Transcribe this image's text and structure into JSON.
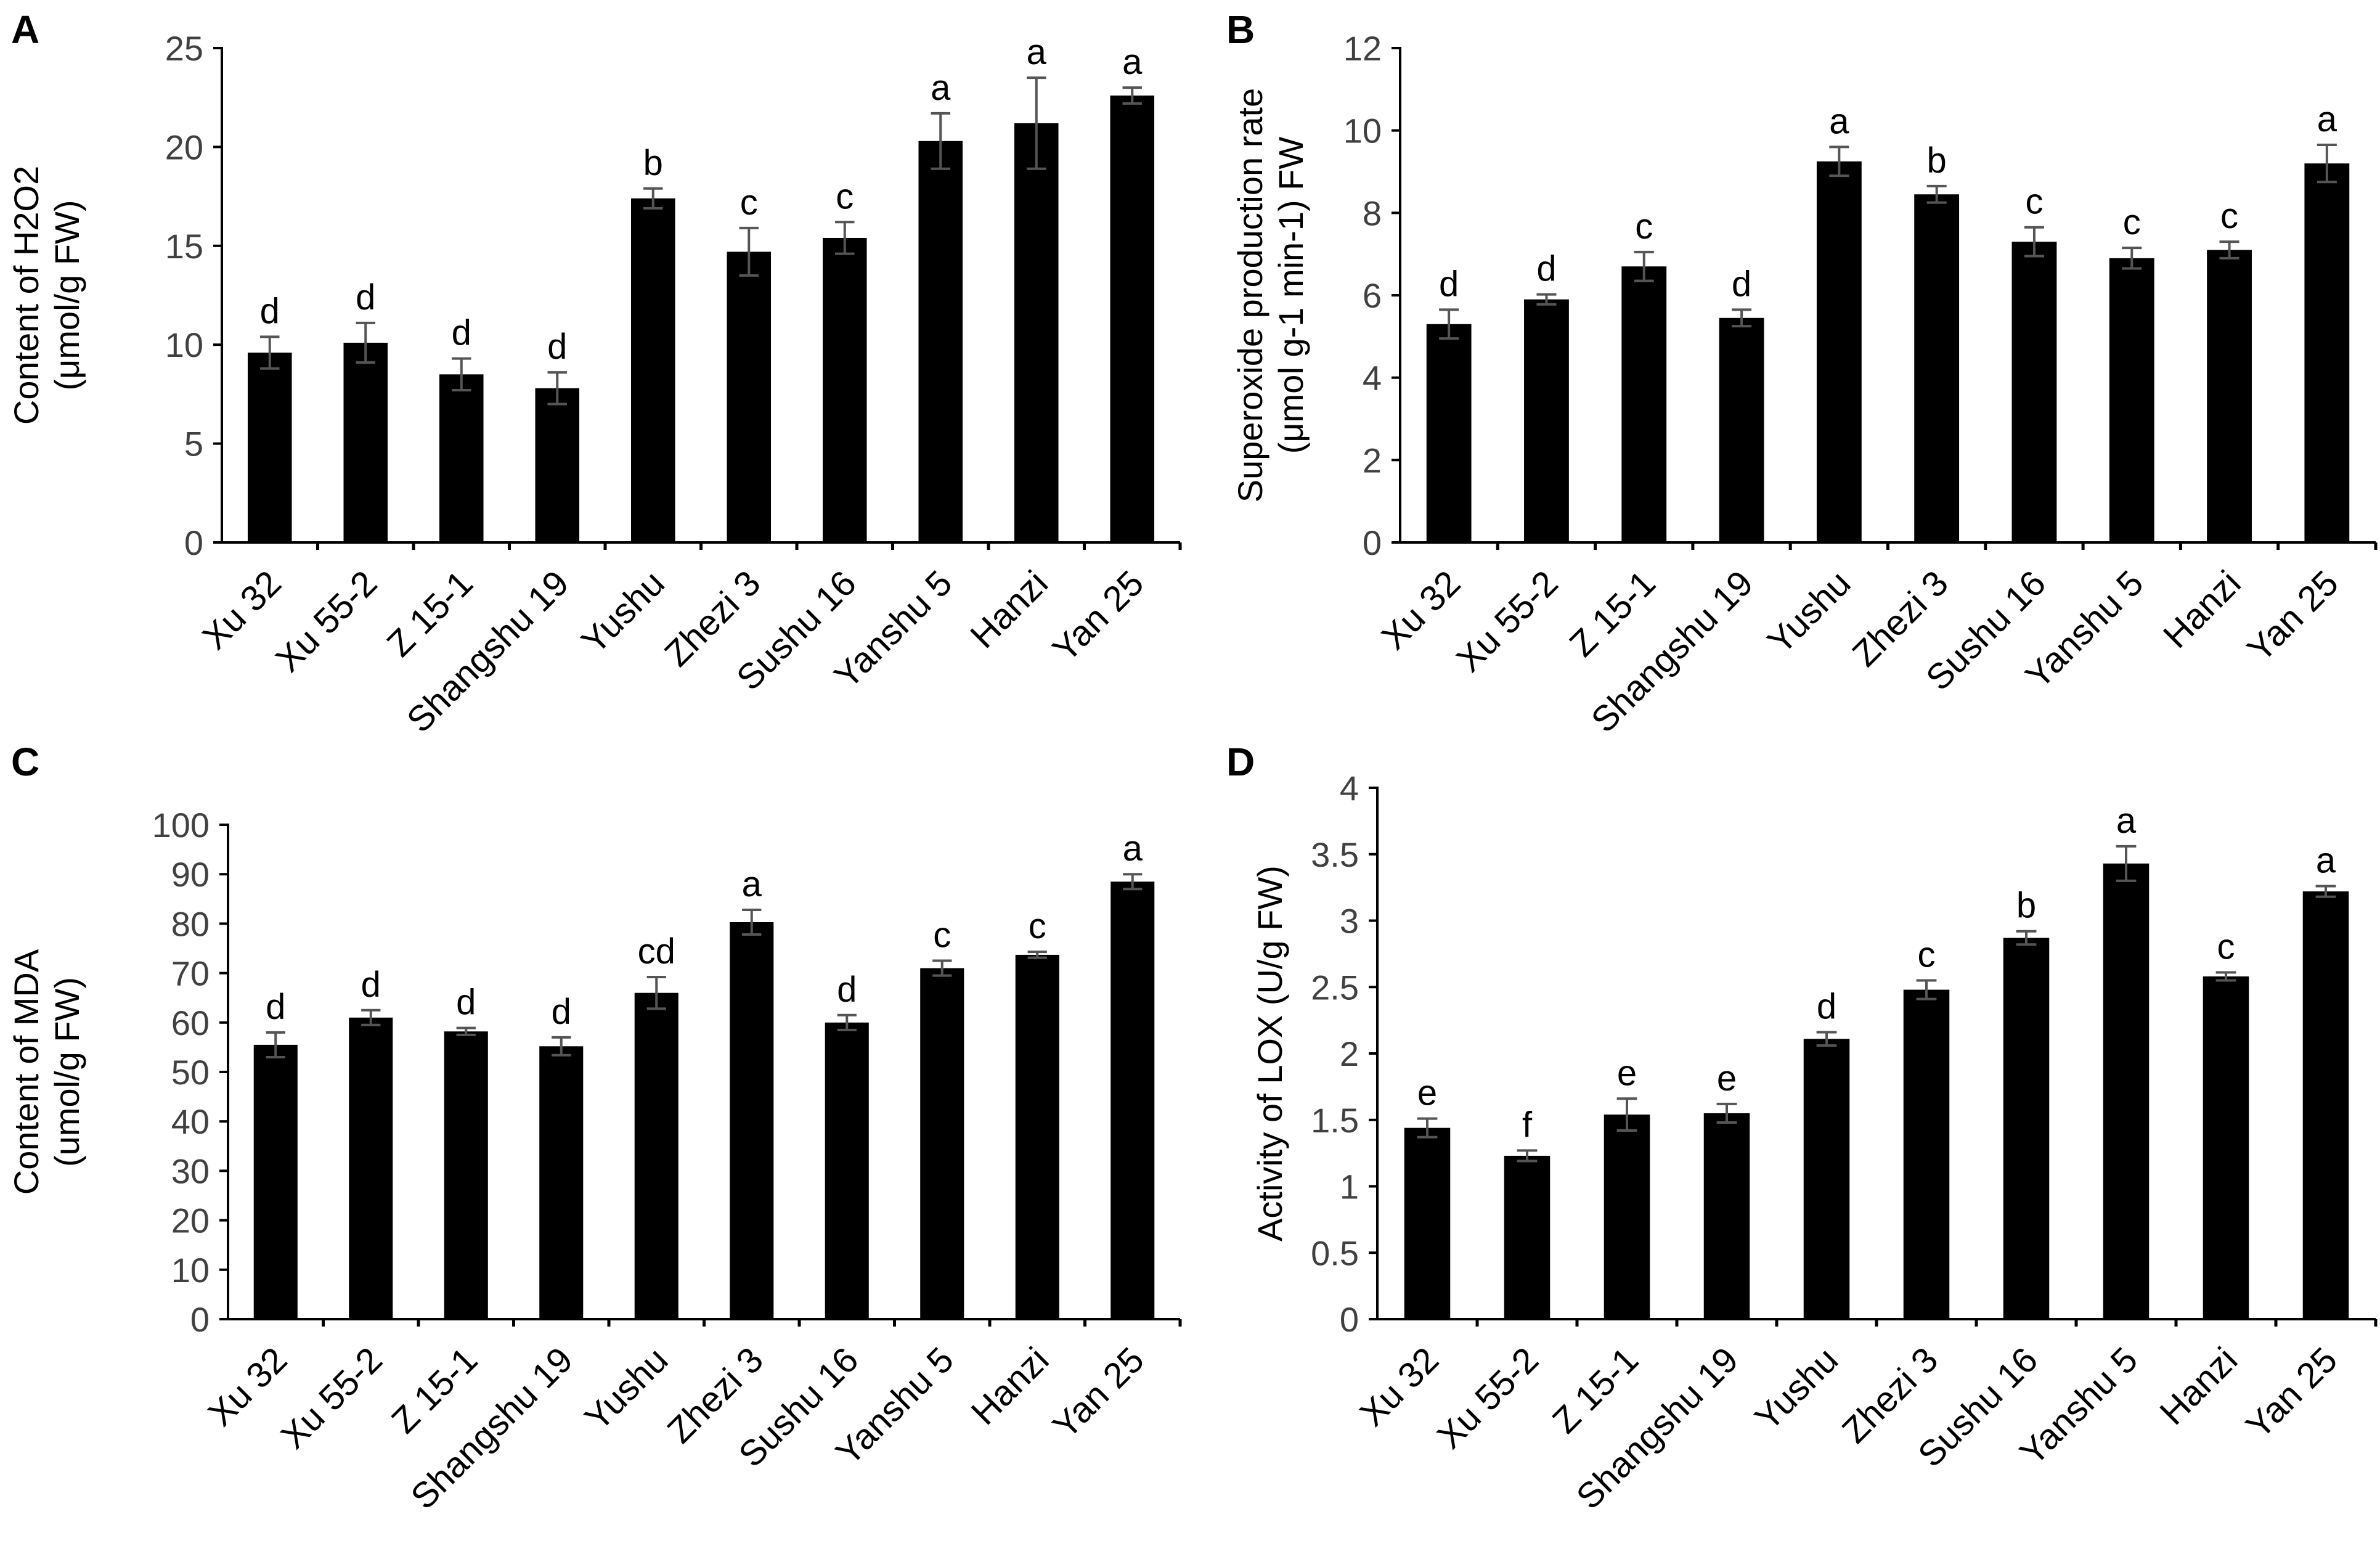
{
  "chart_data": [
    {
      "panel": "A",
      "type": "bar",
      "title": "",
      "xlabel": "",
      "ylabel_line1": "Content of H2O2",
      "ylabel_line2": "(μmol/g FW)",
      "ylim": [
        0,
        25
      ],
      "yticks": [
        0,
        5,
        10,
        15,
        20,
        25
      ],
      "categories": [
        "Xu 32",
        "Xu 55-2",
        "Z 15-1",
        "Shangshu 19",
        "Yushu",
        "Zhezi 3",
        "Sushu 16",
        "Yanshu 5",
        "Hanzi",
        "Yan 25"
      ],
      "values": [
        9.6,
        10.1,
        8.5,
        7.8,
        17.4,
        14.7,
        15.4,
        20.3,
        21.2,
        22.6
      ],
      "errors": [
        0.8,
        1.0,
        0.8,
        0.8,
        0.5,
        1.2,
        0.8,
        1.4,
        2.3,
        0.4
      ],
      "significance": [
        "d",
        "d",
        "d",
        "d",
        "b",
        "c",
        "c",
        "a",
        "a",
        "a"
      ]
    },
    {
      "panel": "B",
      "type": "bar",
      "title": "",
      "xlabel": "",
      "ylabel_line1": "Superoxide production rate",
      "ylabel_line2": "(μmol g-1 min-1) FW",
      "ylim": [
        0,
        12
      ],
      "yticks": [
        0,
        2,
        4,
        6,
        8,
        10,
        12
      ],
      "categories": [
        "Xu 32",
        "Xu 55-2",
        "Z 15-1",
        "Shangshu 19",
        "Yushu",
        "Zhezi 3",
        "Sushu 16",
        "Yanshu 5",
        "Hanzi",
        "Yan 25"
      ],
      "values": [
        5.3,
        5.9,
        6.7,
        5.45,
        9.25,
        8.45,
        7.3,
        6.9,
        7.1,
        9.2
      ],
      "errors": [
        0.35,
        0.12,
        0.35,
        0.2,
        0.35,
        0.2,
        0.35,
        0.25,
        0.2,
        0.45
      ],
      "significance": [
        "d",
        "d",
        "c",
        "d",
        "a",
        "b",
        "c",
        "c",
        "c",
        "a"
      ]
    },
    {
      "panel": "C",
      "type": "bar",
      "title": "",
      "xlabel": "",
      "ylabel_line1": "Content of MDA",
      "ylabel_line2": "(umol/g FW)",
      "ylim": [
        0,
        100
      ],
      "yticks": [
        0,
        10,
        20,
        30,
        40,
        50,
        60,
        70,
        80,
        90,
        100
      ],
      "categories": [
        "Xu 32",
        "Xu 55-2",
        "Z 15-1",
        "Shangshu 19",
        "Yushu",
        "Zhezi 3",
        "Sushu 16",
        "Yanshu 5",
        "Hanzi",
        "Yan 25"
      ],
      "values": [
        55.5,
        61,
        58.2,
        55.2,
        66,
        80.3,
        60,
        71,
        73.7,
        88.5
      ],
      "errors": [
        2.5,
        1.5,
        0.7,
        1.8,
        3.2,
        2.5,
        1.5,
        1.5,
        0.6,
        1.5
      ],
      "significance": [
        "d",
        "d",
        "d",
        "d",
        "cd",
        "a",
        "d",
        "c",
        "c",
        "a"
      ]
    },
    {
      "panel": "D",
      "type": "bar",
      "title": "",
      "xlabel": "",
      "ylabel_line1": "Activity of LOX (U/g FW)",
      "ylabel_line2": "",
      "ylim": [
        0,
        4
      ],
      "yticks": [
        "0",
        "0.5",
        "1",
        "1.5",
        "2",
        "2.5",
        "3",
        "3.5",
        "4"
      ],
      "categories": [
        "Xu 32",
        "Xu 55-2",
        "Z 15-1",
        "Shangshu 19",
        "Yushu",
        "Zhezi 3",
        "Sushu 16",
        "Yanshu 5",
        "Hanzi",
        "Yan 25"
      ],
      "values": [
        1.44,
        1.23,
        1.54,
        1.55,
        2.11,
        2.48,
        2.87,
        3.43,
        2.58,
        3.22
      ],
      "errors": [
        0.07,
        0.04,
        0.12,
        0.07,
        0.05,
        0.07,
        0.05,
        0.13,
        0.03,
        0.04
      ],
      "significance": [
        "e",
        "f",
        "e",
        "e",
        "d",
        "c",
        "b",
        "a",
        "c",
        "a"
      ]
    }
  ]
}
